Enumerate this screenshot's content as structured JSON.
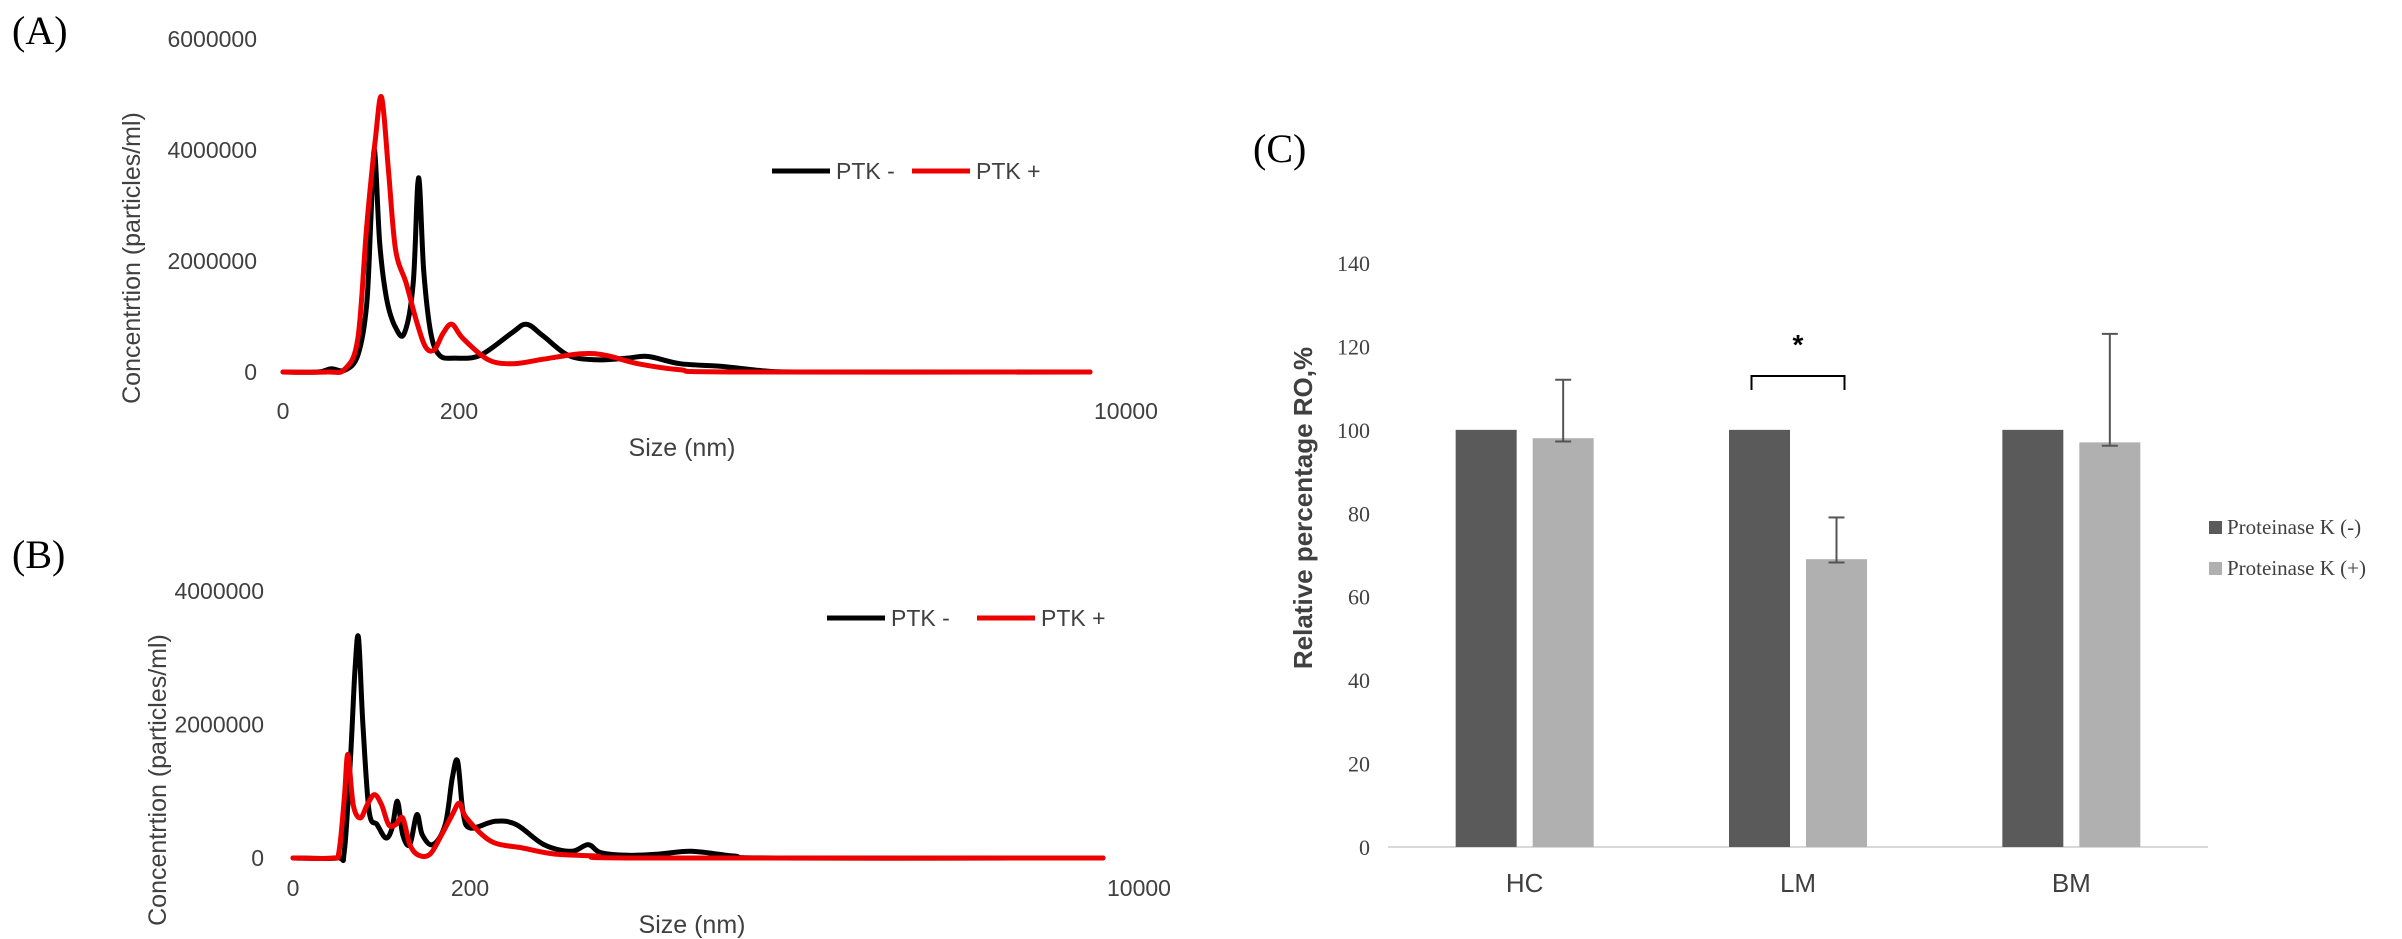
{
  "panels": {
    "A": {
      "label": "(A)"
    },
    "B": {
      "label": "(B)"
    },
    "C": {
      "label": "(C)"
    }
  },
  "colors": {
    "ptk_minus": "#000000",
    "ptk_plus": "#ee0000",
    "bar_minus": "#5a5a5a",
    "bar_plus": "#b0b0b0",
    "axis": "#d9d9d9",
    "text": "#404040"
  },
  "chart_data": [
    {
      "panel": "A",
      "type": "line",
      "xlabel": "Size (nm)",
      "ylabel": "Concentrtion (particles/ml)",
      "x_tick_labels": [
        {
          "value": 0,
          "label": "0"
        },
        {
          "value": 200,
          "label": "200"
        },
        {
          "value": 10000,
          "label": "10000"
        }
      ],
      "y_tick_labels": [
        "0",
        "2000000",
        "4000000",
        "6000000"
      ],
      "ylim": [
        0,
        6000000
      ],
      "legend_position": "top-right",
      "series": [
        {
          "name": "PTK -",
          "color": "#000000",
          "points": [
            [
              0,
              0
            ],
            [
              40,
              0
            ],
            [
              55,
              60000
            ],
            [
              70,
              30000
            ],
            [
              85,
              300000
            ],
            [
              95,
              1200000
            ],
            [
              100,
              2800000
            ],
            [
              104,
              4000000
            ],
            [
              110,
              2300000
            ],
            [
              118,
              1300000
            ],
            [
              128,
              800000
            ],
            [
              138,
              700000
            ],
            [
              148,
              1600000
            ],
            [
              154,
              3500000
            ],
            [
              160,
              1800000
            ],
            [
              168,
              700000
            ],
            [
              178,
              300000
            ],
            [
              195,
              250000
            ],
            [
              210,
              300000
            ],
            [
              225,
              700000
            ],
            [
              232,
              860000
            ],
            [
              240,
              650000
            ],
            [
              252,
              300000
            ],
            [
              265,
              220000
            ],
            [
              280,
              250000
            ],
            [
              290,
              280000
            ],
            [
              305,
              150000
            ],
            [
              325,
              100000
            ],
            [
              345,
              20000
            ],
            [
              360,
              0
            ],
            [
              420,
              0
            ],
            [
              600,
              0
            ],
            [
              10000,
              0
            ]
          ]
        },
        {
          "name": "PTK +",
          "color": "#ee0000",
          "points": [
            [
              0,
              0
            ],
            [
              50,
              0
            ],
            [
              70,
              50000
            ],
            [
              85,
              600000
            ],
            [
              95,
              2600000
            ],
            [
              105,
              4200000
            ],
            [
              112,
              4950000
            ],
            [
              120,
              3600000
            ],
            [
              128,
              2200000
            ],
            [
              140,
              1600000
            ],
            [
              152,
              900000
            ],
            [
              162,
              450000
            ],
            [
              172,
              400000
            ],
            [
              182,
              700000
            ],
            [
              192,
              860000
            ],
            [
              202,
              600000
            ],
            [
              214,
              220000
            ],
            [
              226,
              150000
            ],
            [
              240,
              230000
            ],
            [
              258,
              330000
            ],
            [
              270,
              300000
            ],
            [
              285,
              150000
            ],
            [
              305,
              40000
            ],
            [
              330,
              0
            ],
            [
              500,
              0
            ],
            [
              10000,
              0
            ]
          ]
        }
      ]
    },
    {
      "panel": "B",
      "type": "line",
      "xlabel": "Size (nm)",
      "ylabel": "Concentrtion (particles/ml)",
      "x_tick_labels": [
        {
          "value": 0,
          "label": "0"
        },
        {
          "value": 200,
          "label": "200"
        },
        {
          "value": 10000,
          "label": "10000"
        }
      ],
      "y_tick_labels": [
        "0",
        "2000000",
        "4000000"
      ],
      "ylim": [
        0,
        4000000
      ],
      "legend_position": "top-right",
      "series": [
        {
          "name": "PTK -",
          "color": "#000000",
          "points": [
            [
              0,
              0
            ],
            [
              50,
              0
            ],
            [
              58,
              100000
            ],
            [
              65,
              1500000
            ],
            [
              70,
              2800000
            ],
            [
              74,
              3300000
            ],
            [
              79,
              2000000
            ],
            [
              86,
              700000
            ],
            [
              95,
              500000
            ],
            [
              105,
              300000
            ],
            [
              112,
              450000
            ],
            [
              118,
              850000
            ],
            [
              124,
              350000
            ],
            [
              132,
              200000
            ],
            [
              140,
              650000
            ],
            [
              146,
              350000
            ],
            [
              158,
              200000
            ],
            [
              172,
              500000
            ],
            [
              180,
              1200000
            ],
            [
              186,
              1450000
            ],
            [
              192,
              700000
            ],
            [
              200,
              450000
            ],
            [
              212,
              550000
            ],
            [
              222,
              500000
            ],
            [
              235,
              200000
            ],
            [
              248,
              100000
            ],
            [
              256,
              200000
            ],
            [
              262,
              80000
            ],
            [
              275,
              40000
            ],
            [
              290,
              60000
            ],
            [
              305,
              100000
            ],
            [
              325,
              30000
            ],
            [
              345,
              0
            ],
            [
              500,
              0
            ],
            [
              10000,
              0
            ]
          ]
        },
        {
          "name": "PTK +",
          "color": "#ee0000",
          "points": [
            [
              0,
              0
            ],
            [
              45,
              0
            ],
            [
              52,
              100000
            ],
            [
              58,
              900000
            ],
            [
              62,
              1550000
            ],
            [
              68,
              800000
            ],
            [
              76,
              600000
            ],
            [
              84,
              800000
            ],
            [
              92,
              950000
            ],
            [
              100,
              800000
            ],
            [
              108,
              500000
            ],
            [
              116,
              500000
            ],
            [
              124,
              600000
            ],
            [
              132,
              200000
            ],
            [
              142,
              40000
            ],
            [
              155,
              60000
            ],
            [
              168,
              350000
            ],
            [
              180,
              650000
            ],
            [
              188,
              820000
            ],
            [
              196,
              600000
            ],
            [
              210,
              250000
            ],
            [
              225,
              150000
            ],
            [
              240,
              60000
            ],
            [
              260,
              30000
            ],
            [
              280,
              0
            ],
            [
              500,
              0
            ],
            [
              10000,
              0
            ]
          ]
        }
      ]
    },
    {
      "panel": "C",
      "type": "bar",
      "ylabel": "Relative percentage RO,%",
      "categories": [
        "HC",
        "LM",
        "BM"
      ],
      "ylim": [
        0,
        140
      ],
      "y_tick_labels": [
        "0",
        "20",
        "40",
        "60",
        "80",
        "100",
        "120",
        "140"
      ],
      "legend_position": "right",
      "series": [
        {
          "name": "Proteinase K (-)",
          "color": "#5a5a5a",
          "values": [
            100,
            100,
            100
          ]
        },
        {
          "name": "Proteinase K (+)",
          "color": "#b0b0b0",
          "values": [
            98,
            69,
            97
          ],
          "error_low": [
            0.8,
            0.8,
            0.8
          ],
          "error_high": [
            14,
            10,
            26
          ]
        }
      ],
      "annotations": [
        {
          "text": "*",
          "category": "LM"
        }
      ]
    }
  ]
}
